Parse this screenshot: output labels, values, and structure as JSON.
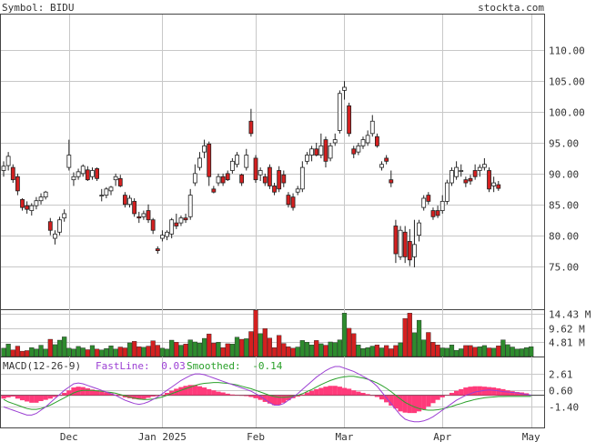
{
  "header": {
    "symbol_label": "Symbol: BIDU",
    "site": "stockta.com"
  },
  "colors": {
    "up": "#2e8b2e",
    "down": "#d42020",
    "macd_hist": "#ff3a7a",
    "fast_line": "#9b3fd3",
    "smoothed_line": "#2aa02a",
    "grid": "#c8c8c8"
  },
  "chart_data": [
    {
      "type": "candlestick",
      "title": "Symbol: BIDU",
      "y_ticks": [
        75.0,
        80.0,
        85.0,
        90.0,
        95.0,
        100.0,
        105.0,
        110.0
      ],
      "y_tick_labels": [
        "75.00",
        "80.00",
        "85.00",
        "90.00",
        "95.00",
        "100.00",
        "105.00",
        "110.00"
      ],
      "ylim": [
        68.0,
        115.8
      ],
      "x_tick_labels": [
        "Dec",
        "Jan 2025",
        "Feb",
        "Mar",
        "Apr",
        "May"
      ],
      "x_tick_index": [
        14,
        34,
        54,
        73,
        94,
        113
      ],
      "candles": [
        {
          "o": 90.5,
          "h": 92.0,
          "l": 89.5,
          "c": 91.2
        },
        {
          "o": 91.3,
          "h": 93.5,
          "l": 90.5,
          "c": 92.8
        },
        {
          "o": 91.0,
          "h": 91.5,
          "l": 88.5,
          "c": 89.0
        },
        {
          "o": 89.5,
          "h": 90.0,
          "l": 86.5,
          "c": 87.2
        },
        {
          "o": 85.8,
          "h": 86.0,
          "l": 84.0,
          "c": 84.5
        },
        {
          "o": 84.8,
          "h": 85.5,
          "l": 83.5,
          "c": 84.2
        },
        {
          "o": 84.0,
          "h": 85.2,
          "l": 83.2,
          "c": 84.8
        },
        {
          "o": 84.8,
          "h": 86.2,
          "l": 84.2,
          "c": 85.6
        },
        {
          "o": 85.6,
          "h": 86.8,
          "l": 85.0,
          "c": 86.2
        },
        {
          "o": 86.2,
          "h": 87.2,
          "l": 85.8,
          "c": 87.0
        },
        {
          "o": 82.2,
          "h": 82.8,
          "l": 80.0,
          "c": 80.8
        },
        {
          "o": 79.5,
          "h": 80.8,
          "l": 78.5,
          "c": 80.2
        },
        {
          "o": 80.5,
          "h": 83.0,
          "l": 80.0,
          "c": 82.5
        },
        {
          "o": 82.8,
          "h": 84.2,
          "l": 82.2,
          "c": 83.5
        },
        {
          "o": 91.0,
          "h": 95.5,
          "l": 90.5,
          "c": 93.0
        },
        {
          "o": 89.0,
          "h": 90.2,
          "l": 88.0,
          "c": 89.5
        },
        {
          "o": 89.5,
          "h": 90.8,
          "l": 89.0,
          "c": 90.3
        },
        {
          "o": 90.0,
          "h": 91.5,
          "l": 89.5,
          "c": 91.2
        },
        {
          "o": 90.6,
          "h": 91.2,
          "l": 88.8,
          "c": 89.0
        },
        {
          "o": 89.5,
          "h": 91.0,
          "l": 89.0,
          "c": 90.5
        },
        {
          "o": 90.8,
          "h": 91.0,
          "l": 88.8,
          "c": 89.2
        },
        {
          "o": 86.5,
          "h": 87.5,
          "l": 85.5,
          "c": 86.5
        },
        {
          "o": 86.5,
          "h": 87.8,
          "l": 86.0,
          "c": 87.5
        },
        {
          "o": 87.2,
          "h": 88.0,
          "l": 86.5,
          "c": 87.8
        },
        {
          "o": 89.0,
          "h": 90.0,
          "l": 88.0,
          "c": 89.5
        },
        {
          "o": 89.2,
          "h": 89.8,
          "l": 87.8,
          "c": 88.0
        },
        {
          "o": 86.5,
          "h": 87.0,
          "l": 84.5,
          "c": 85.0
        },
        {
          "o": 85.0,
          "h": 86.5,
          "l": 84.5,
          "c": 86.0
        },
        {
          "o": 85.5,
          "h": 86.0,
          "l": 83.0,
          "c": 83.5
        },
        {
          "o": 83.0,
          "h": 83.8,
          "l": 82.0,
          "c": 82.8
        },
        {
          "o": 83.0,
          "h": 84.0,
          "l": 82.5,
          "c": 83.5
        },
        {
          "o": 84.0,
          "h": 85.0,
          "l": 82.0,
          "c": 82.5
        },
        {
          "o": 82.5,
          "h": 82.8,
          "l": 80.2,
          "c": 80.8
        },
        {
          "o": 77.8,
          "h": 78.2,
          "l": 77.0,
          "c": 77.5
        },
        {
          "o": 79.5,
          "h": 80.8,
          "l": 79.0,
          "c": 80.0
        },
        {
          "o": 79.8,
          "h": 80.8,
          "l": 79.2,
          "c": 80.5
        },
        {
          "o": 80.2,
          "h": 82.8,
          "l": 79.5,
          "c": 82.5
        },
        {
          "o": 82.0,
          "h": 83.5,
          "l": 81.0,
          "c": 81.5
        },
        {
          "o": 82.0,
          "h": 83.2,
          "l": 81.5,
          "c": 82.8
        },
        {
          "o": 82.8,
          "h": 83.5,
          "l": 82.0,
          "c": 82.5
        },
        {
          "o": 83.0,
          "h": 87.5,
          "l": 82.5,
          "c": 86.5
        },
        {
          "o": 88.5,
          "h": 91.5,
          "l": 88.0,
          "c": 90.0
        },
        {
          "o": 91.0,
          "h": 93.5,
          "l": 90.5,
          "c": 92.5
        },
        {
          "o": 93.5,
          "h": 95.5,
          "l": 92.5,
          "c": 94.5
        },
        {
          "o": 94.8,
          "h": 95.2,
          "l": 88.0,
          "c": 89.5
        },
        {
          "o": 87.5,
          "h": 88.0,
          "l": 86.8,
          "c": 87.0
        },
        {
          "o": 88.5,
          "h": 90.0,
          "l": 88.0,
          "c": 89.5
        },
        {
          "o": 89.5,
          "h": 90.0,
          "l": 88.0,
          "c": 88.5
        },
        {
          "o": 90.0,
          "h": 90.5,
          "l": 88.8,
          "c": 89.0
        },
        {
          "o": 90.5,
          "h": 92.5,
          "l": 90.0,
          "c": 92.0
        },
        {
          "o": 91.5,
          "h": 93.5,
          "l": 91.0,
          "c": 93.0
        },
        {
          "o": 89.8,
          "h": 90.0,
          "l": 88.0,
          "c": 88.5
        },
        {
          "o": 91.0,
          "h": 94.0,
          "l": 90.5,
          "c": 93.0
        },
        {
          "o": 98.5,
          "h": 100.5,
          "l": 96.0,
          "c": 96.5
        },
        {
          "o": 92.5,
          "h": 93.0,
          "l": 88.5,
          "c": 89.0
        },
        {
          "o": 89.8,
          "h": 91.0,
          "l": 88.8,
          "c": 90.5
        },
        {
          "o": 89.5,
          "h": 90.0,
          "l": 88.0,
          "c": 88.5
        },
        {
          "o": 91.0,
          "h": 91.5,
          "l": 87.5,
          "c": 88.0
        },
        {
          "o": 88.0,
          "h": 88.5,
          "l": 86.5,
          "c": 87.0
        },
        {
          "o": 90.5,
          "h": 91.2,
          "l": 87.0,
          "c": 87.5
        },
        {
          "o": 89.8,
          "h": 90.5,
          "l": 87.8,
          "c": 88.5
        },
        {
          "o": 86.5,
          "h": 87.0,
          "l": 84.5,
          "c": 85.0
        },
        {
          "o": 86.2,
          "h": 86.8,
          "l": 84.0,
          "c": 84.5
        },
        {
          "o": 87.0,
          "h": 88.0,
          "l": 86.5,
          "c": 87.5
        },
        {
          "o": 87.5,
          "h": 92.0,
          "l": 87.0,
          "c": 91.0
        },
        {
          "o": 92.0,
          "h": 93.5,
          "l": 91.5,
          "c": 93.0
        },
        {
          "o": 93.0,
          "h": 94.5,
          "l": 92.0,
          "c": 94.0
        },
        {
          "o": 94.0,
          "h": 95.0,
          "l": 92.8,
          "c": 93.0
        },
        {
          "o": 93.0,
          "h": 96.5,
          "l": 92.5,
          "c": 94.5
        },
        {
          "o": 95.5,
          "h": 96.0,
          "l": 91.0,
          "c": 92.0
        },
        {
          "o": 92.5,
          "h": 95.0,
          "l": 92.0,
          "c": 94.5
        },
        {
          "o": 95.0,
          "h": 96.5,
          "l": 94.5,
          "c": 95.5
        },
        {
          "o": 97.0,
          "h": 103.5,
          "l": 96.5,
          "c": 103.0
        },
        {
          "o": 103.5,
          "h": 105.0,
          "l": 102.0,
          "c": 104.0
        },
        {
          "o": 101.0,
          "h": 101.5,
          "l": 96.0,
          "c": 96.5
        },
        {
          "o": 94.0,
          "h": 94.5,
          "l": 92.5,
          "c": 93.2
        },
        {
          "o": 93.5,
          "h": 95.0,
          "l": 93.0,
          "c": 94.5
        },
        {
          "o": 94.5,
          "h": 96.0,
          "l": 94.0,
          "c": 95.5
        },
        {
          "o": 95.0,
          "h": 97.0,
          "l": 94.5,
          "c": 96.2
        },
        {
          "o": 96.5,
          "h": 99.5,
          "l": 96.0,
          "c": 98.5
        },
        {
          "o": 96.0,
          "h": 96.5,
          "l": 94.2,
          "c": 94.5
        },
        {
          "o": 91.0,
          "h": 92.0,
          "l": 90.5,
          "c": 91.5
        },
        {
          "o": 92.5,
          "h": 93.0,
          "l": 91.5,
          "c": 92.0
        },
        {
          "o": 89.0,
          "h": 90.5,
          "l": 87.8,
          "c": 88.5
        },
        {
          "o": 81.5,
          "h": 82.5,
          "l": 75.5,
          "c": 77.0
        },
        {
          "o": 76.5,
          "h": 81.5,
          "l": 76.0,
          "c": 80.8
        },
        {
          "o": 80.5,
          "h": 81.5,
          "l": 75.5,
          "c": 76.5
        },
        {
          "o": 79.0,
          "h": 81.0,
          "l": 75.0,
          "c": 76.0
        },
        {
          "o": 76.5,
          "h": 82.5,
          "l": 74.8,
          "c": 78.5
        },
        {
          "o": 80.0,
          "h": 82.5,
          "l": 79.0,
          "c": 82.0
        },
        {
          "o": 84.5,
          "h": 86.5,
          "l": 84.0,
          "c": 86.0
        },
        {
          "o": 86.5,
          "h": 87.0,
          "l": 85.0,
          "c": 85.5
        },
        {
          "o": 84.0,
          "h": 84.5,
          "l": 82.5,
          "c": 83.0
        },
        {
          "o": 84.0,
          "h": 84.8,
          "l": 82.8,
          "c": 83.2
        },
        {
          "o": 84.0,
          "h": 86.5,
          "l": 83.5,
          "c": 85.5
        },
        {
          "o": 85.5,
          "h": 89.0,
          "l": 85.0,
          "c": 88.5
        },
        {
          "o": 88.5,
          "h": 91.0,
          "l": 88.0,
          "c": 90.5
        },
        {
          "o": 89.5,
          "h": 92.0,
          "l": 89.0,
          "c": 91.0
        },
        {
          "o": 90.5,
          "h": 91.5,
          "l": 89.5,
          "c": 90.5
        },
        {
          "o": 89.0,
          "h": 89.5,
          "l": 87.8,
          "c": 88.5
        },
        {
          "o": 89.2,
          "h": 89.8,
          "l": 88.2,
          "c": 88.8
        },
        {
          "o": 90.5,
          "h": 91.5,
          "l": 89.0,
          "c": 89.5
        },
        {
          "o": 90.5,
          "h": 91.5,
          "l": 89.5,
          "c": 91.0
        },
        {
          "o": 91.0,
          "h": 92.5,
          "l": 90.5,
          "c": 91.5
        },
        {
          "o": 90.5,
          "h": 91.0,
          "l": 87.0,
          "c": 87.5
        },
        {
          "o": 88.0,
          "h": 89.5,
          "l": 87.0,
          "c": 88.5
        },
        {
          "o": 88.2,
          "h": 88.8,
          "l": 87.2,
          "c": 87.6
        }
      ]
    },
    {
      "type": "bar",
      "title": "",
      "y_tick_labels": [
        "14.43 M",
        "9.62 M",
        "4.81 M"
      ],
      "y_ticks": [
        14.43,
        9.62,
        4.81
      ],
      "ylim": [
        0,
        15.6
      ],
      "unit": "M",
      "values": [
        2.8,
        4.2,
        2.2,
        3.5,
        1.8,
        2.0,
        3.0,
        2.5,
        3.8,
        2.5,
        5.8,
        4.0,
        5.5,
        6.6,
        2.8,
        2.5,
        3.4,
        2.9,
        2.3,
        3.7,
        2.5,
        2.2,
        2.7,
        3.6,
        2.5,
        3.2,
        2.9,
        4.6,
        5.1,
        3.3,
        3.1,
        3.5,
        5.3,
        3.8,
        2.8,
        2.5,
        5.5,
        4.8,
        3.8,
        4.2,
        5.6,
        4.9,
        4.5,
        6.1,
        7.6,
        4.5,
        4.8,
        3.0,
        4.3,
        4.2,
        6.5,
        5.8,
        6.0,
        8.4,
        15.6,
        7.7,
        9.4,
        6.2,
        3.0,
        7.1,
        4.4,
        3.3,
        2.8,
        3.2,
        5.4,
        4.8,
        3.9,
        5.4,
        4.3,
        3.8,
        4.9,
        4.7,
        5.6,
        14.6,
        9.5,
        7.7,
        3.9,
        2.7,
        3.0,
        3.5,
        3.9,
        2.9,
        3.7,
        2.6,
        3.7,
        4.6,
        12.8,
        14.6,
        8.0,
        12.2,
        5.6,
        8.1,
        4.8,
        3.9,
        2.9,
        2.8,
        3.9,
        2.1,
        2.6,
        3.7,
        3.7,
        3.1,
        3.3,
        3.7,
        2.9,
        2.8,
        3.6,
        5.6,
        4.0,
        3.2,
        2.5,
        2.6,
        3.0,
        3.3
      ]
    },
    {
      "type": "area",
      "title": "MACD(12-26-9)",
      "legend": [
        {
          "name": "FastLine:",
          "value": "0.03"
        },
        {
          "name": "Smoothed:",
          "value": "-0.14"
        }
      ],
      "y_ticks": [
        2.61,
        0.6,
        -1.4
      ],
      "y_tick_labels": [
        "2.61",
        "0.60",
        "-1.40"
      ],
      "ylim": [
        -3.9,
        4.6
      ],
      "baseline": 0,
      "histogram": [
        -0.4,
        -0.25,
        -0.15,
        -0.4,
        -0.6,
        -0.75,
        -0.9,
        -0.9,
        -0.7,
        -0.55,
        -0.4,
        -0.2,
        -0.05,
        0.3,
        0.6,
        0.95,
        1.05,
        1.0,
        0.85,
        0.7,
        0.6,
        0.45,
        0.35,
        0.25,
        0.1,
        -0.05,
        -0.25,
        -0.35,
        -0.45,
        -0.5,
        -0.45,
        -0.3,
        -0.15,
        -0.1,
        0.05,
        0.3,
        0.55,
        0.8,
        1.0,
        1.15,
        1.25,
        1.25,
        1.1,
        0.95,
        0.75,
        0.6,
        0.45,
        0.35,
        0.2,
        0.1,
        0.05,
        -0.05,
        -0.1,
        -0.2,
        -0.35,
        -0.55,
        -0.8,
        -1.0,
        -1.2,
        -1.15,
        -0.9,
        -0.6,
        -0.35,
        -0.15,
        0.1,
        0.35,
        0.55,
        0.75,
        0.9,
        1.05,
        1.15,
        1.15,
        1.05,
        0.9,
        0.8,
        0.6,
        0.45,
        0.3,
        0.15,
        0.0,
        -0.2,
        -0.5,
        -0.85,
        -1.25,
        -1.6,
        -1.95,
        -2.1,
        -2.15,
        -2.15,
        -1.95,
        -1.7,
        -1.35,
        -0.95,
        -0.55,
        -0.25,
        0.05,
        0.3,
        0.55,
        0.75,
        0.95,
        1.05,
        1.1,
        1.1,
        1.05,
        1.0,
        0.95,
        0.85,
        0.75,
        0.6,
        0.5,
        0.4,
        0.35,
        0.25
      ],
      "fast_line": [
        -1.4,
        -1.6,
        -1.8,
        -2.0,
        -2.2,
        -2.4,
        -2.4,
        -2.2,
        -1.8,
        -1.4,
        -0.9,
        -0.4,
        0.1,
        0.6,
        1.0,
        1.4,
        1.5,
        1.4,
        1.2,
        1.0,
        0.8,
        0.6,
        0.4,
        0.2,
        0.0,
        -0.3,
        -0.6,
        -0.8,
        -1.0,
        -1.1,
        -1.0,
        -0.8,
        -0.5,
        -0.2,
        0.2,
        0.6,
        1.0,
        1.4,
        1.8,
        2.1,
        2.4,
        2.6,
        2.6,
        2.5,
        2.3,
        2.1,
        1.9,
        1.7,
        1.5,
        1.3,
        1.1,
        0.9,
        0.7,
        0.5,
        0.2,
        -0.1,
        -0.5,
        -0.9,
        -1.2,
        -1.2,
        -1.0,
        -0.6,
        -0.2,
        0.2,
        0.7,
        1.2,
        1.7,
        2.2,
        2.6,
        3.0,
        3.3,
        3.5,
        3.5,
        3.3,
        3.1,
        2.9,
        2.6,
        2.3,
        2.0,
        1.6,
        1.1,
        0.4,
        -0.3,
        -1.0,
        -1.7,
        -2.4,
        -2.9,
        -3.1,
        -3.2,
        -3.2,
        -3.1,
        -2.9,
        -2.6,
        -2.2,
        -1.8,
        -1.4,
        -1.0,
        -0.6,
        -0.3,
        0.0,
        0.2,
        0.4,
        0.5,
        0.6,
        0.65,
        0.6,
        0.55,
        0.45,
        0.4,
        0.35,
        0.3,
        0.2,
        0.1,
        0.03
      ],
      "smoothed_line": [
        -0.5,
        -0.8,
        -1.0,
        -1.2,
        -1.4,
        -1.6,
        -1.7,
        -1.7,
        -1.6,
        -1.4,
        -1.2,
        -0.9,
        -0.6,
        -0.3,
        0.0,
        0.3,
        0.5,
        0.6,
        0.6,
        0.6,
        0.55,
        0.5,
        0.4,
        0.35,
        0.25,
        0.1,
        -0.05,
        -0.2,
        -0.35,
        -0.45,
        -0.5,
        -0.5,
        -0.45,
        -0.35,
        -0.2,
        0.0,
        0.2,
        0.4,
        0.6,
        0.8,
        1.0,
        1.2,
        1.35,
        1.45,
        1.5,
        1.55,
        1.55,
        1.5,
        1.45,
        1.35,
        1.25,
        1.1,
        0.95,
        0.8,
        0.6,
        0.4,
        0.2,
        0.0,
        -0.15,
        -0.25,
        -0.25,
        -0.2,
        -0.1,
        0.0,
        0.2,
        0.45,
        0.7,
        1.0,
        1.3,
        1.55,
        1.8,
        2.0,
        2.15,
        2.25,
        2.3,
        2.3,
        2.2,
        2.1,
        1.95,
        1.75,
        1.5,
        1.2,
        0.85,
        0.45,
        0.0,
        -0.45,
        -0.85,
        -1.15,
        -1.4,
        -1.6,
        -1.75,
        -1.8,
        -1.8,
        -1.75,
        -1.65,
        -1.5,
        -1.35,
        -1.15,
        -1.0,
        -0.8,
        -0.65,
        -0.5,
        -0.4,
        -0.3,
        -0.25,
        -0.2,
        -0.15,
        -0.15,
        -0.14,
        -0.14,
        -0.14,
        -0.14,
        -0.14,
        -0.14
      ]
    }
  ]
}
